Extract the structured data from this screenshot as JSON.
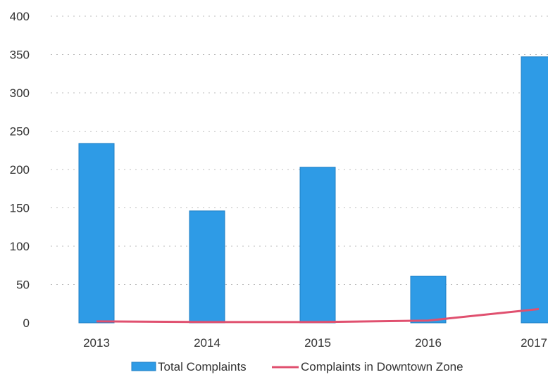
{
  "chart_data": {
    "type": "bar",
    "categories": [
      "2013",
      "2014",
      "2015",
      "2016",
      "2017"
    ],
    "series": [
      {
        "name": "Total Complaints",
        "kind": "bar",
        "color": "#2e9be6",
        "values": [
          234,
          146,
          203,
          61,
          347
        ]
      },
      {
        "name": "Complaints in Downtown Zone",
        "kind": "line",
        "color": "#e0506f",
        "values": [
          2,
          1,
          1,
          3,
          18
        ]
      }
    ],
    "yticks": [
      0,
      50,
      100,
      150,
      200,
      250,
      300,
      350,
      400
    ],
    "ylim": [
      0,
      400
    ],
    "grid": true,
    "legend_position": "bottom",
    "xlabel": "",
    "ylabel": ""
  }
}
